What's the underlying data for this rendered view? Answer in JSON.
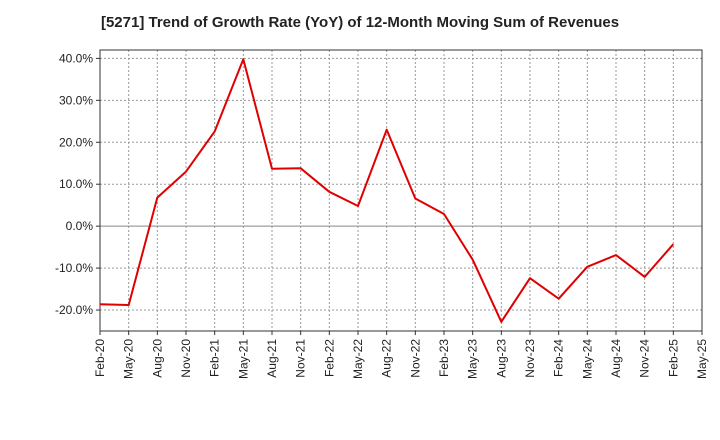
{
  "chart_data": {
    "type": "line",
    "title": "[5271]  Trend of Growth Rate (YoY) of 12-Month Moving Sum of Revenues",
    "xlabel": "",
    "ylabel": "",
    "ylim": [
      -25,
      42
    ],
    "y_ticks": [
      "40.0%",
      "30.0%",
      "20.0%",
      "10.0%",
      "0.0%",
      "-10.0%",
      "-20.0%"
    ],
    "y_tick_values": [
      40,
      30,
      20,
      10,
      0,
      -10,
      -20
    ],
    "x_tick_labels": [
      "Feb-20",
      "May-20",
      "Aug-20",
      "Nov-20",
      "Feb-21",
      "May-21",
      "Aug-21",
      "Nov-21",
      "Feb-22",
      "May-22",
      "Aug-22",
      "Nov-22",
      "Feb-23",
      "May-23",
      "Aug-23",
      "Nov-23",
      "Feb-24",
      "May-24",
      "Aug-24",
      "Nov-24",
      "Feb-25",
      "May-25"
    ],
    "grid": true,
    "series": [
      {
        "color": "#e00000",
        "x": [
          "Feb-20",
          "May-20",
          "Aug-20",
          "Nov-20",
          "Feb-21",
          "May-21",
          "Aug-21",
          "Nov-21",
          "Feb-22",
          "May-22",
          "Aug-22",
          "Nov-22",
          "Feb-23",
          "May-23",
          "Aug-23",
          "Nov-23",
          "Feb-24",
          "May-24",
          "Aug-24",
          "Nov-24",
          "Feb-25"
        ],
        "values": [
          -18.6,
          -18.8,
          6.8,
          13.0,
          22.6,
          39.8,
          13.7,
          13.8,
          8.2,
          4.8,
          23.0,
          6.6,
          2.9,
          -8.0,
          -22.8,
          -12.4,
          -17.3,
          -9.7,
          -6.9,
          -12.1,
          -4.3
        ]
      }
    ]
  }
}
